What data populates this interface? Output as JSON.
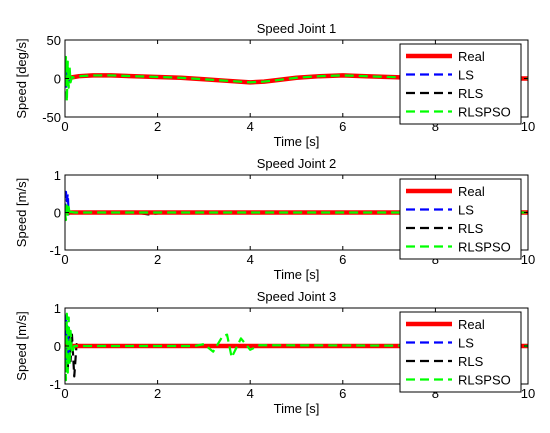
{
  "chart_data": [
    {
      "type": "line",
      "title": "Speed Joint 1",
      "xlabel": "Time [s]",
      "ylabel": "Speed [deg/s]",
      "xlim": [
        0,
        10
      ],
      "ylim": [
        -50,
        50
      ],
      "xticks": [
        0,
        2,
        4,
        6,
        8,
        10
      ],
      "yticks": [
        -50,
        0,
        50
      ],
      "grid": false,
      "legend_position": "right",
      "series": [
        {
          "name": "Real",
          "color": "#ff0000",
          "style": "solid",
          "x": [
            0,
            0.05,
            0.1,
            0.3,
            0.6,
            1,
            1.5,
            2,
            2.5,
            3,
            3.5,
            4,
            4.3,
            4.6,
            5,
            5.5,
            6,
            6.5,
            7,
            7.5,
            8,
            8.5,
            9,
            9.5,
            10
          ],
          "y": [
            0,
            0,
            1,
            3,
            4,
            4,
            3,
            2,
            1,
            -1,
            -3,
            -5,
            -4,
            -2,
            1,
            3,
            4,
            3,
            2,
            1,
            0,
            0,
            0,
            0,
            0
          ]
        },
        {
          "name": "LS",
          "color": "#0000ff",
          "style": "dashed",
          "x": [
            0,
            0.02,
            0.04,
            0.06,
            0.08,
            0.1,
            0.12,
            0.15,
            0.2,
            0.3,
            0.6,
            1,
            1.5,
            2,
            2.5,
            3,
            3.5,
            4,
            4.3,
            4.6,
            5,
            5.5,
            6,
            6.5,
            7,
            7.5,
            8,
            10
          ],
          "y": [
            0,
            -15,
            10,
            -8,
            6,
            -3,
            2,
            1,
            1,
            3,
            4,
            4,
            3,
            2,
            1,
            -1,
            -3,
            -5,
            -4,
            -2,
            1,
            3,
            4,
            3,
            2,
            1,
            0,
            0
          ]
        },
        {
          "name": "RLS",
          "color": "#000000",
          "style": "dashed",
          "x": [
            0,
            0.02,
            0.04,
            0.06,
            0.08,
            0.1,
            0.12,
            0.15,
            0.2,
            0.3,
            0.6,
            1,
            1.5,
            2,
            2.5,
            3,
            3.5,
            4,
            4.3,
            4.6,
            5,
            5.5,
            6,
            6.5,
            7,
            7.5,
            8,
            10
          ],
          "y": [
            0,
            -10,
            8,
            -6,
            4,
            -2,
            2,
            1,
            1,
            3,
            4,
            4,
            3,
            2,
            1,
            -1,
            -3,
            -5,
            -4,
            -2,
            1,
            3,
            4,
            3,
            2,
            1,
            0,
            0
          ]
        },
        {
          "name": "RLSPSO",
          "color": "#00ff00",
          "style": "dashed",
          "x": [
            0,
            0.02,
            0.04,
            0.06,
            0.08,
            0.1,
            0.12,
            0.15,
            0.2,
            0.3,
            0.6,
            1,
            1.5,
            2,
            2.5,
            3,
            3.5,
            4,
            4.3,
            4.6,
            5,
            5.5,
            6,
            6.5,
            7,
            7.5,
            8,
            10
          ],
          "y": [
            0,
            28,
            -30,
            22,
            -12,
            15,
            -5,
            2,
            1,
            3,
            4,
            4,
            3,
            2,
            1,
            -1,
            -3,
            -5,
            -4,
            -2,
            1,
            3,
            4,
            3,
            2,
            1,
            0,
            0
          ]
        }
      ]
    },
    {
      "type": "line",
      "title": "Speed Joint 2",
      "xlabel": "Time [s]",
      "ylabel": "Speed [m/s]",
      "xlim": [
        0,
        10
      ],
      "ylim": [
        -1,
        1
      ],
      "xticks": [
        0,
        2,
        4,
        6,
        8,
        10
      ],
      "yticks": [
        -1,
        0,
        1
      ],
      "grid": false,
      "legend_position": "right",
      "series": [
        {
          "name": "Real",
          "color": "#ff0000",
          "style": "solid",
          "x": [
            0,
            10
          ],
          "y": [
            0,
            0
          ]
        },
        {
          "name": "LS",
          "color": "#0000ff",
          "style": "dashed",
          "x": [
            0,
            0.02,
            0.04,
            0.06,
            0.08,
            0.1,
            0.12,
            0.2,
            10
          ],
          "y": [
            0,
            0.55,
            0.3,
            0.5,
            -0.05,
            0.02,
            0,
            0,
            0
          ]
        },
        {
          "name": "RLS",
          "color": "#000000",
          "style": "dashed",
          "x": [
            0,
            0.03,
            0.06,
            0.1,
            0.2,
            1.5,
            1.8,
            2.2,
            10
          ],
          "y": [
            0,
            0.1,
            -0.05,
            0.02,
            0,
            0,
            -0.05,
            0,
            0
          ]
        },
        {
          "name": "RLSPSO",
          "color": "#00ff00",
          "style": "dashed",
          "x": [
            0,
            0.02,
            0.04,
            0.06,
            0.08,
            0.1,
            0.12,
            0.2,
            10
          ],
          "y": [
            0,
            -0.2,
            0.25,
            -0.1,
            0.15,
            -0.05,
            0.02,
            0,
            0
          ]
        }
      ]
    },
    {
      "type": "line",
      "title": "Speed Joint 3",
      "xlabel": "Time [s]",
      "ylabel": "Speed [m/s]",
      "xlim": [
        0,
        10
      ],
      "ylim": [
        -1,
        1
      ],
      "xticks": [
        0,
        2,
        4,
        6,
        8,
        10
      ],
      "yticks": [
        -1,
        0,
        1
      ],
      "grid": false,
      "legend_position": "right",
      "series": [
        {
          "name": "Real",
          "color": "#ff0000",
          "style": "solid",
          "x": [
            0,
            10
          ],
          "y": [
            0,
            0
          ]
        },
        {
          "name": "LS",
          "color": "#0000ff",
          "style": "dashed",
          "x": [
            0,
            0.02,
            0.04,
            0.06,
            0.08,
            0.1,
            0.15,
            0.2,
            10
          ],
          "y": [
            0,
            0.8,
            -0.5,
            0.5,
            -0.3,
            0.1,
            0,
            0,
            0
          ]
        },
        {
          "name": "RLS",
          "color": "#000000",
          "style": "dashed",
          "x": [
            0,
            0.03,
            0.06,
            0.09,
            0.12,
            0.15,
            0.2,
            0.25,
            0.3,
            10
          ],
          "y": [
            0,
            0.5,
            -0.6,
            0.4,
            -0.4,
            0.3,
            -0.8,
            0.05,
            0,
            0
          ]
        },
        {
          "name": "RLSPSO",
          "color": "#00ff00",
          "style": "dashed",
          "x": [
            0,
            0.02,
            0.04,
            0.06,
            0.08,
            0.1,
            0.12,
            0.15,
            0.2,
            2.8,
            3.0,
            3.2,
            3.4,
            3.5,
            3.6,
            3.8,
            4.0,
            4.2,
            10
          ],
          "y": [
            0,
            -0.9,
            0.85,
            -0.7,
            0.75,
            -0.5,
            0.4,
            -0.2,
            0,
            0,
            0.05,
            -0.15,
            0.25,
            0.3,
            -0.3,
            0.2,
            -0.1,
            0.02,
            0
          ]
        }
      ]
    }
  ]
}
